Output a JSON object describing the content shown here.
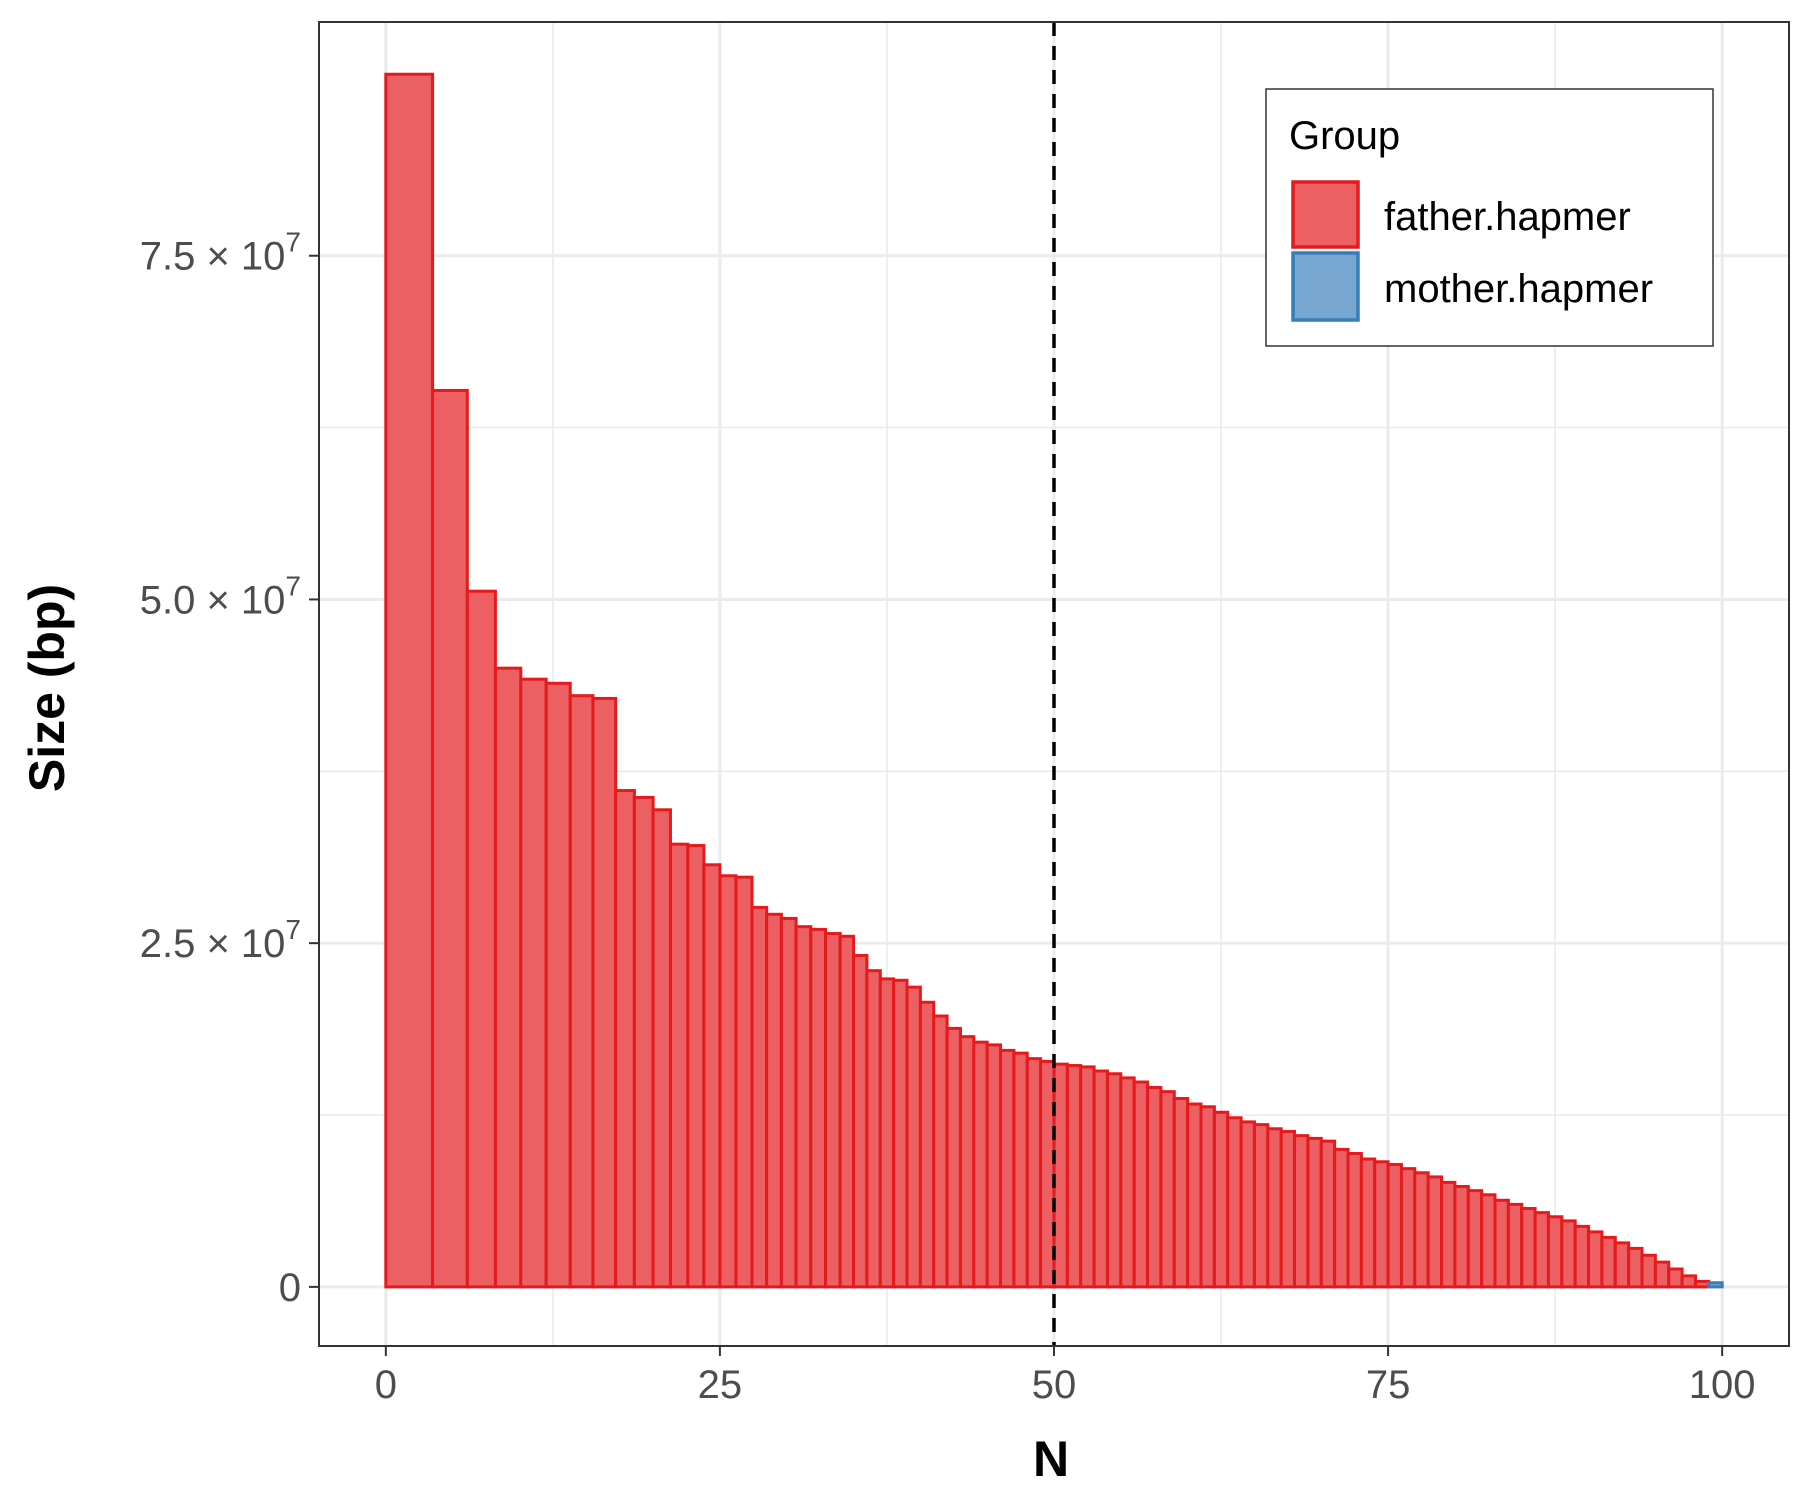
{
  "chart_data": {
    "type": "bar",
    "title": "",
    "xlabel": "N",
    "ylabel": "Size (bp)",
    "xlim": [
      -5,
      105
    ],
    "ylim": [
      -4300000,
      92000000
    ],
    "x_ticks": [
      {
        "value": 0,
        "label": "0"
      },
      {
        "value": 25,
        "label": "25"
      },
      {
        "value": 50,
        "label": "50"
      },
      {
        "value": 75,
        "label": "75"
      },
      {
        "value": 100,
        "label": "100"
      }
    ],
    "y_ticks": [
      {
        "value": 0,
        "mantissa": "0",
        "exponent": ""
      },
      {
        "value": 25000000,
        "mantissa": "2.5",
        "exponent": "7"
      },
      {
        "value": 50000000,
        "mantissa": "5.0",
        "exponent": "7"
      },
      {
        "value": 75000000,
        "mantissa": "7.5",
        "exponent": "7"
      }
    ],
    "grid": true,
    "reference_line": {
      "x": 50,
      "style": "dashed",
      "color": "#000000"
    },
    "legend": {
      "title": "Group",
      "position": "top-right",
      "entries": [
        {
          "label": "father.hapmer",
          "fill": "#ec6064",
          "stroke": "#e41a1c"
        },
        {
          "label": "mother.hapmer",
          "fill": "#77a7d0",
          "stroke": "#377eb8"
        }
      ]
    },
    "colors": {
      "father_fill": "#ec6064",
      "father_stroke": "#e41a1c",
      "mother_fill": "#77a7d0",
      "mother_stroke": "#377eb8",
      "grid": "#ebebeb",
      "panel_border": "#333333"
    },
    "series": [
      {
        "name": "father.hapmer",
        "bars": [
          [
            0,
            3.5,
            88200000
          ],
          [
            3.5,
            6.1,
            65200000
          ],
          [
            6.1,
            8.2,
            50600000
          ],
          [
            8.2,
            10.1,
            45000000
          ],
          [
            10.1,
            12.0,
            44200000
          ],
          [
            12.0,
            13.8,
            43900000
          ],
          [
            13.8,
            15.5,
            43000000
          ],
          [
            15.5,
            17.2,
            42800000
          ],
          [
            17.2,
            18.6,
            36100000
          ],
          [
            18.6,
            20.0,
            35600000
          ],
          [
            20.0,
            21.3,
            34700000
          ],
          [
            21.3,
            22.6,
            32200000
          ],
          [
            22.6,
            23.8,
            32100000
          ],
          [
            23.8,
            25.0,
            30700000
          ],
          [
            25.0,
            26.2,
            29900000
          ],
          [
            26.2,
            27.4,
            29800000
          ],
          [
            27.4,
            28.5,
            27600000
          ],
          [
            28.5,
            29.6,
            27100000
          ],
          [
            29.6,
            30.7,
            26800000
          ],
          [
            30.7,
            31.8,
            26200000
          ],
          [
            31.8,
            32.9,
            26000000
          ],
          [
            32.9,
            34.0,
            25700000
          ],
          [
            34.0,
            35.0,
            25500000
          ],
          [
            35.0,
            36.0,
            24100000
          ],
          [
            36.0,
            37.0,
            23000000
          ],
          [
            37.0,
            38.0,
            22400000
          ],
          [
            38.0,
            39.0,
            22300000
          ],
          [
            39.0,
            40.0,
            21800000
          ],
          [
            40.0,
            41.0,
            20700000
          ],
          [
            41.0,
            42.0,
            19700000
          ],
          [
            42.0,
            43.0,
            18800000
          ],
          [
            43.0,
            44.0,
            18200000
          ],
          [
            44.0,
            45.0,
            17800000
          ],
          [
            45.0,
            46.0,
            17600000
          ],
          [
            46.0,
            47.0,
            17200000
          ],
          [
            47.0,
            48.0,
            17000000
          ],
          [
            48.0,
            49.0,
            16600000
          ],
          [
            49.0,
            50.0,
            16400000
          ],
          [
            50.0,
            51.0,
            16200000
          ],
          [
            51.0,
            52.0,
            16100000
          ],
          [
            52.0,
            53.0,
            16000000
          ],
          [
            53.0,
            54.0,
            15700000
          ],
          [
            54.0,
            55.0,
            15500000
          ],
          [
            55.0,
            56.0,
            15200000
          ],
          [
            56.0,
            57.0,
            14900000
          ],
          [
            57.0,
            58.0,
            14500000
          ],
          [
            58.0,
            59.0,
            14200000
          ],
          [
            59.0,
            60.0,
            13700000
          ],
          [
            60.0,
            61.0,
            13300000
          ],
          [
            61.0,
            62.0,
            13100000
          ],
          [
            62.0,
            63.0,
            12700000
          ],
          [
            63.0,
            64.0,
            12300000
          ],
          [
            64.0,
            65.0,
            12000000
          ],
          [
            65.0,
            66.0,
            11800000
          ],
          [
            66.0,
            67.0,
            11500000
          ],
          [
            67.0,
            68.0,
            11300000
          ],
          [
            68.0,
            69.0,
            11000000
          ],
          [
            69.0,
            70.0,
            10800000
          ],
          [
            70.0,
            71.0,
            10600000
          ],
          [
            71.0,
            72.0,
            10000000
          ],
          [
            72.0,
            73.0,
            9700000
          ],
          [
            73.0,
            74.0,
            9300000
          ],
          [
            74.0,
            75.0,
            9100000
          ],
          [
            75.0,
            76.0,
            8900000
          ],
          [
            76.0,
            77.0,
            8600000
          ],
          [
            77.0,
            78.0,
            8300000
          ],
          [
            78.0,
            79.0,
            8000000
          ],
          [
            79.0,
            80.0,
            7600000
          ],
          [
            80.0,
            81.0,
            7300000
          ],
          [
            81.0,
            82.0,
            7000000
          ],
          [
            82.0,
            83.0,
            6700000
          ],
          [
            83.0,
            84.0,
            6300000
          ],
          [
            84.0,
            85.0,
            6000000
          ],
          [
            85.0,
            86.0,
            5700000
          ],
          [
            86.0,
            87.0,
            5400000
          ],
          [
            87.0,
            88.0,
            5100000
          ],
          [
            88.0,
            89.0,
            4800000
          ],
          [
            89.0,
            90.0,
            4400000
          ],
          [
            90.0,
            91.0,
            4000000
          ],
          [
            91.0,
            92.0,
            3600000
          ],
          [
            92.0,
            93.0,
            3200000
          ],
          [
            93.0,
            94.0,
            2800000
          ],
          [
            94.0,
            95.0,
            2300000
          ],
          [
            95.0,
            96.0,
            1800000
          ],
          [
            96.0,
            97.0,
            1300000
          ],
          [
            97.0,
            98.0,
            800000
          ],
          [
            98.0,
            99.0,
            400000
          ]
        ]
      },
      {
        "name": "mother.hapmer",
        "bars": [
          [
            99.0,
            100.0,
            300000
          ]
        ]
      }
    ]
  }
}
